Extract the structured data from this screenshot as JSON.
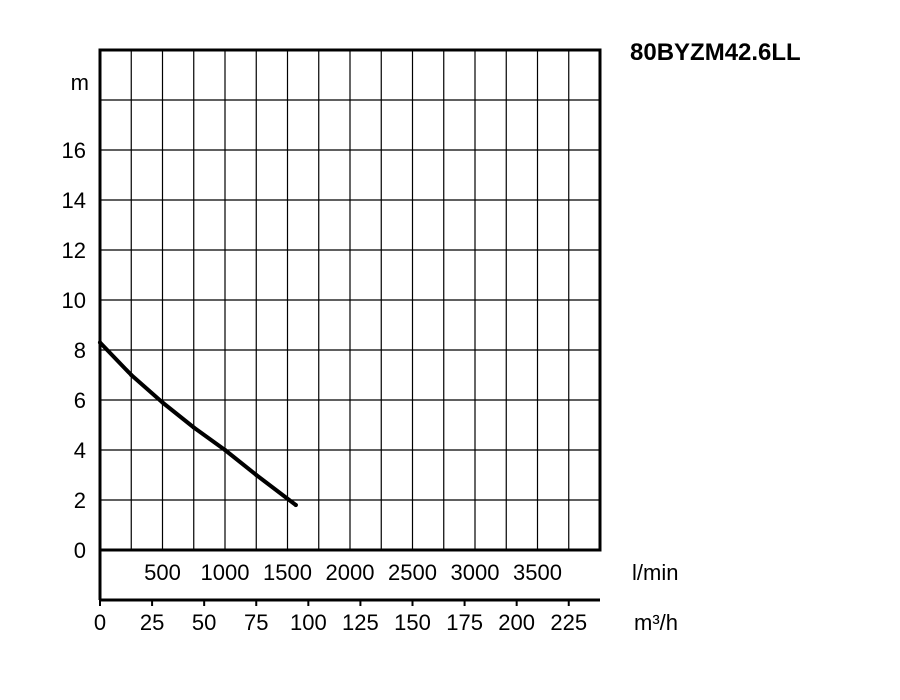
{
  "chart_data": {
    "type": "line",
    "title": "80BYZM42.6LL",
    "y_unit": "m",
    "x_unit_primary": "l/min",
    "x_unit_secondary": "m³/h",
    "y_ticks": [
      0,
      2,
      4,
      6,
      8,
      10,
      12,
      14,
      16
    ],
    "ylim": [
      0,
      20
    ],
    "xlim_m3h": [
      0,
      240
    ],
    "x_ticks_lmin": [
      "500",
      "1000",
      "1500",
      "2000",
      "2500",
      "3000",
      "3500"
    ],
    "x_ticks_m3h": [
      "0",
      "25",
      "50",
      "75",
      "100",
      "125",
      "150",
      "175",
      "200",
      "225"
    ],
    "grid": true,
    "series": [
      {
        "color": "#000000",
        "points": [
          {
            "x": 0,
            "y": 8.3
          },
          {
            "x": 15,
            "y": 7.0
          },
          {
            "x": 30,
            "y": 5.9
          },
          {
            "x": 45,
            "y": 4.9
          },
          {
            "x": 60,
            "y": 4.0
          },
          {
            "x": 75,
            "y": 3.0
          },
          {
            "x": 94,
            "y": 1.8
          }
        ]
      }
    ]
  }
}
